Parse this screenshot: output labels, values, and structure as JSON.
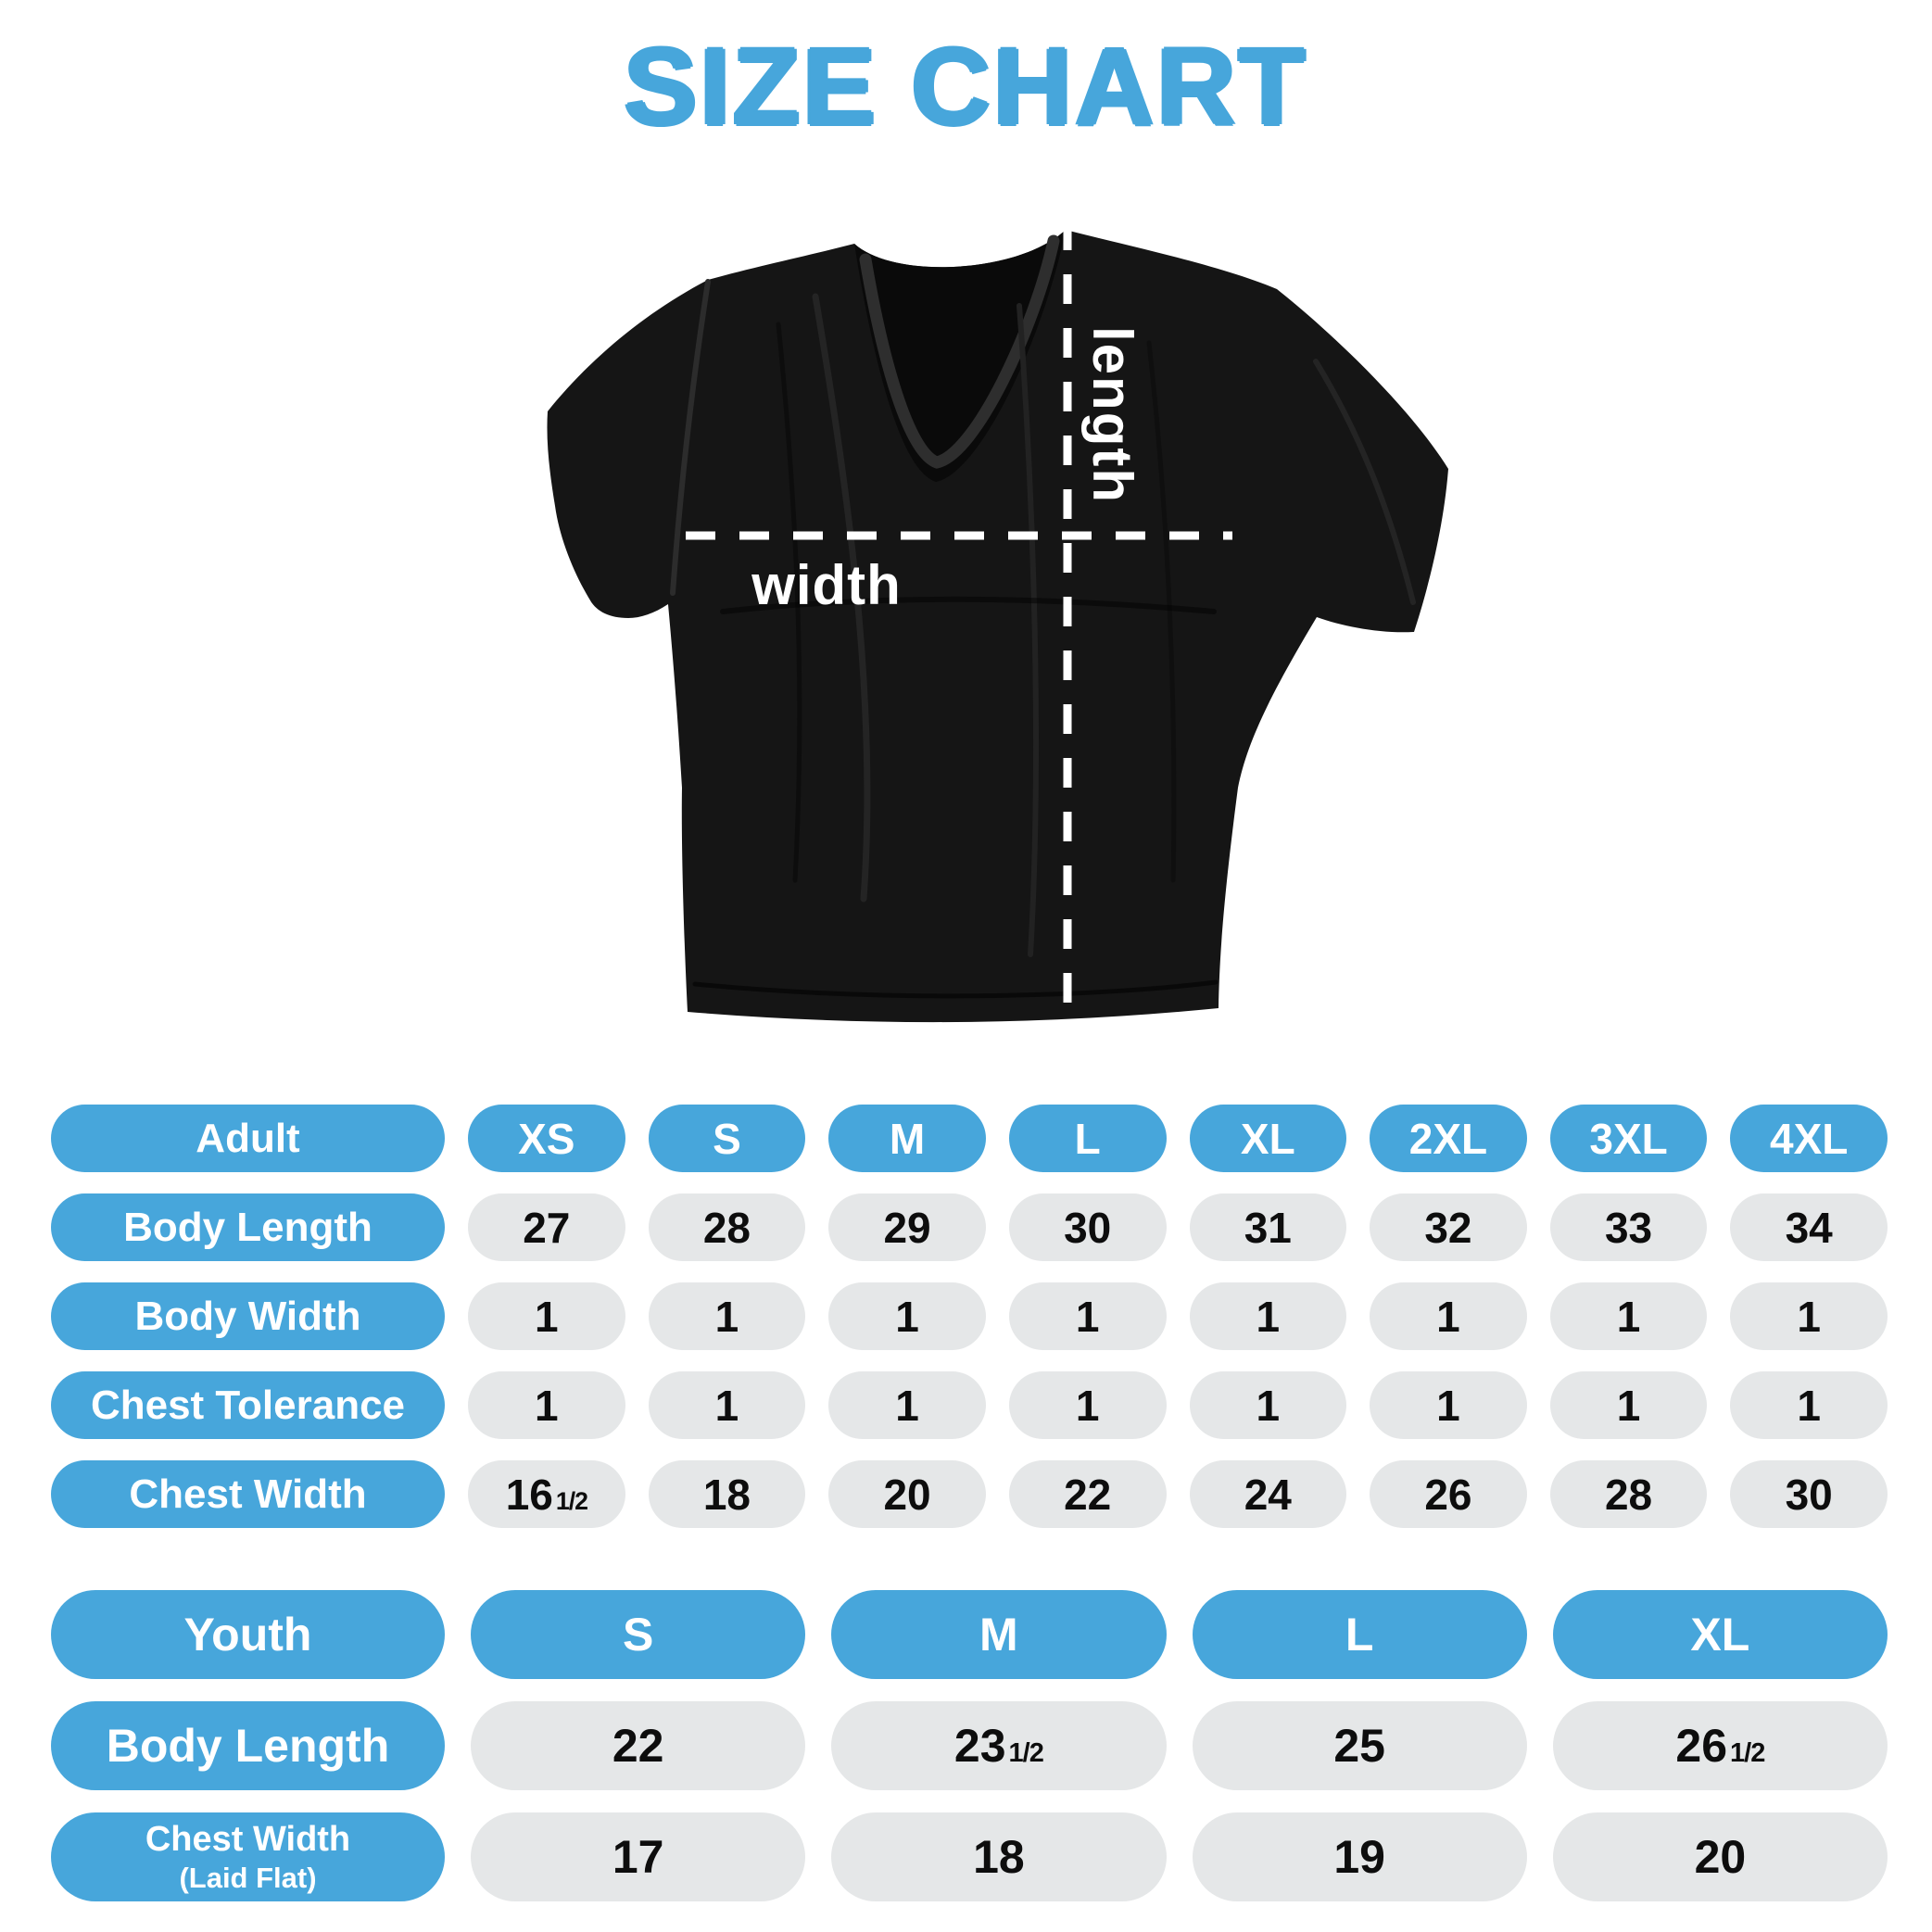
{
  "title": "SIZE CHART",
  "diagram": {
    "length_label": "length",
    "width_label": "width"
  },
  "colors": {
    "accent_blue": "#47A6DB",
    "cell_gray": "#E5E7E8",
    "value_text": "#0d0d0d",
    "shirt_black": "#151515",
    "measure_line_white": "#ffffff"
  },
  "adult_table": {
    "header": [
      "Adult",
      "XS",
      "S",
      "M",
      "L",
      "XL",
      "2XL",
      "3XL",
      "4XL"
    ],
    "rows": [
      {
        "label": "Body Length",
        "values": [
          "27",
          "28",
          "29",
          "30",
          "31",
          "32",
          "33",
          "34"
        ]
      },
      {
        "label": "Body Width",
        "values": [
          "1",
          "1",
          "1",
          "1",
          "1",
          "1",
          "1",
          "1"
        ]
      },
      {
        "label": "Chest Tolerance",
        "values": [
          "1",
          "1",
          "1",
          "1",
          "1",
          "1",
          "1",
          "1"
        ]
      },
      {
        "label": "Chest Width",
        "values": [
          "16½",
          "18",
          "20",
          "22",
          "24",
          "26",
          "28",
          "30"
        ]
      }
    ]
  },
  "youth_table": {
    "header": [
      "Youth",
      "S",
      "M",
      "L",
      "XL"
    ],
    "rows": [
      {
        "label": "Body Length",
        "sublabel": "",
        "values": [
          "22",
          "23½",
          "25",
          "26½"
        ]
      },
      {
        "label": "Chest Width",
        "sublabel": "(Laid Flat)",
        "values": [
          "17",
          "18",
          "19",
          "20"
        ]
      }
    ]
  },
  "chart_data": [
    {
      "type": "table",
      "title": "Adult sizes",
      "columns": [
        "Adult",
        "XS",
        "S",
        "M",
        "L",
        "XL",
        "2XL",
        "3XL",
        "4XL"
      ],
      "rows": [
        [
          "Body Length",
          27,
          28,
          29,
          30,
          31,
          32,
          33,
          34
        ],
        [
          "Body Width",
          1,
          1,
          1,
          1,
          1,
          1,
          1,
          1
        ],
        [
          "Chest Tolerance",
          1,
          1,
          1,
          1,
          1,
          1,
          1,
          1
        ],
        [
          "Chest Width",
          16.5,
          18,
          20,
          22,
          24,
          26,
          28,
          30
        ]
      ]
    },
    {
      "type": "table",
      "title": "Youth sizes",
      "columns": [
        "Youth",
        "S",
        "M",
        "L",
        "XL"
      ],
      "rows": [
        [
          "Body Length",
          22,
          23.5,
          25,
          26.5
        ],
        [
          "Chest Width (Laid Flat)",
          17,
          18,
          19,
          20
        ]
      ]
    }
  ]
}
